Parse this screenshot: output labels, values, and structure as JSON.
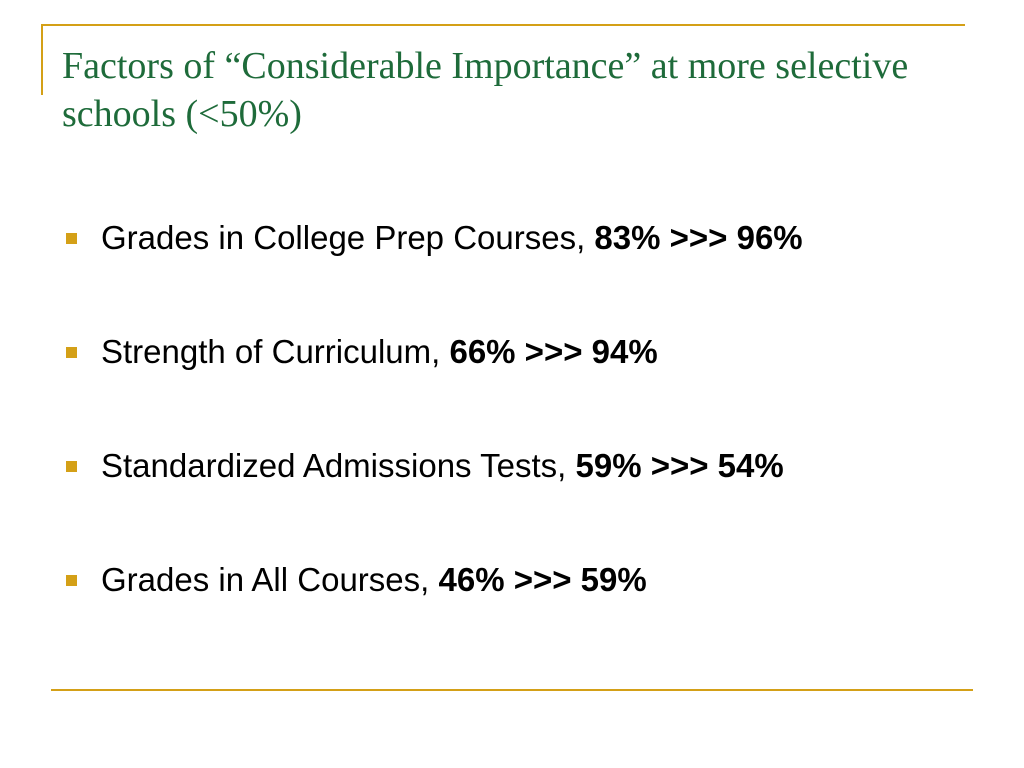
{
  "slide": {
    "title": "Factors of “Considerable Importance” at more selective schools (<50%)",
    "accent_color": "#d4a017",
    "title_color": "#1e6b3a",
    "bullets": [
      {
        "label": "Grades in College Prep Courses, ",
        "stat": "83% >>> 96%"
      },
      {
        "label": "Strength of Curriculum, ",
        "stat": "66% >>> 94%"
      },
      {
        "label": "Standardized Admissions Tests, ",
        "stat": "59% >>> 54%"
      },
      {
        "label": "Grades in All Courses, ",
        "stat": "46% >>> 59%"
      }
    ]
  }
}
